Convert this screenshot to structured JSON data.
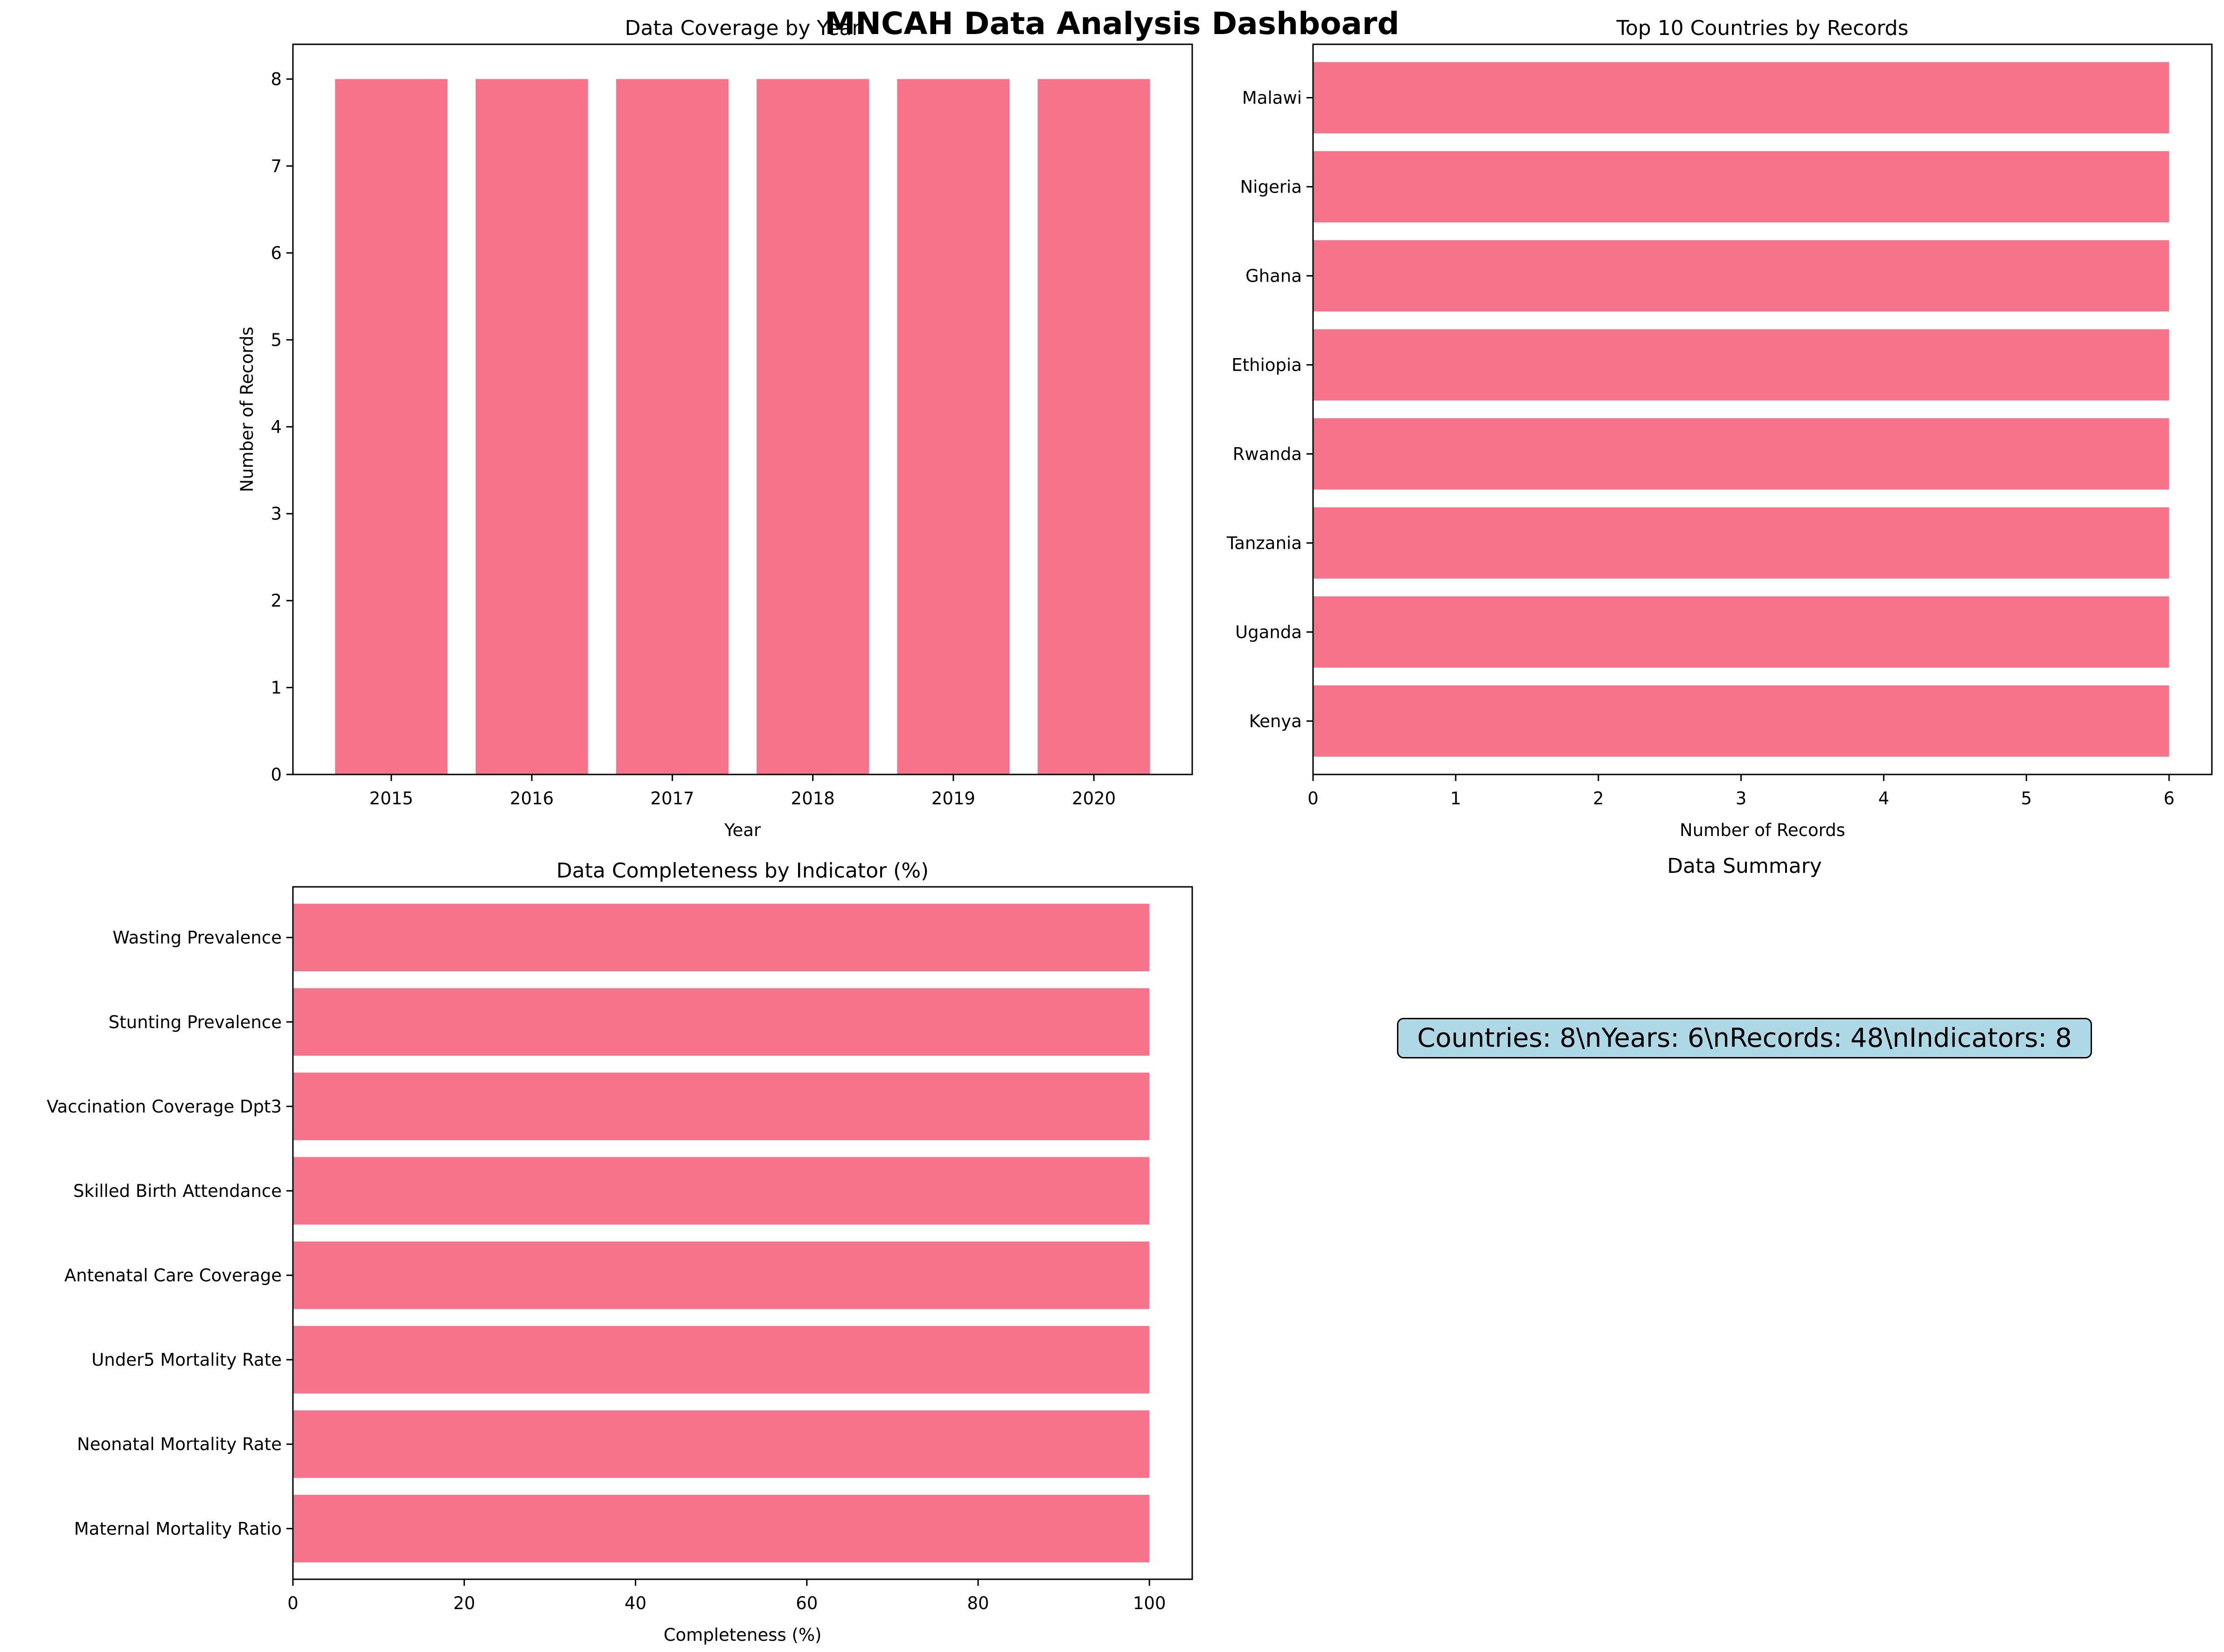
{
  "dashboard": {
    "title": "MNCAH Data Analysis Dashboard"
  },
  "colors": {
    "bar": "#f7738a"
  },
  "chart_data": [
    {
      "id": "coverage-by-year",
      "type": "bar",
      "orientation": "vertical",
      "title": "Data Coverage by Year",
      "xlabel": "Year",
      "ylabel": "Number of Records",
      "categories": [
        "2015",
        "2016",
        "2017",
        "2018",
        "2019",
        "2020"
      ],
      "values": [
        8,
        8,
        8,
        8,
        8,
        8
      ],
      "ylim": [
        0,
        8.4
      ],
      "yticks": [
        0,
        1,
        2,
        3,
        4,
        5,
        6,
        7,
        8
      ],
      "grid": false
    },
    {
      "id": "top-countries",
      "type": "bar",
      "orientation": "horizontal",
      "title": "Top 10 Countries by Records",
      "xlabel": "Number of Records",
      "ylabel": "",
      "categories": [
        "Kenya",
        "Uganda",
        "Tanzania",
        "Rwanda",
        "Ethiopia",
        "Ghana",
        "Nigeria",
        "Malawi"
      ],
      "values": [
        6,
        6,
        6,
        6,
        6,
        6,
        6,
        6
      ],
      "xlim": [
        0,
        6.3
      ],
      "xticks": [
        0,
        1,
        2,
        3,
        4,
        5,
        6
      ],
      "grid": false
    },
    {
      "id": "completeness-by-indicator",
      "type": "bar",
      "orientation": "horizontal",
      "title": "Data Completeness by Indicator (%)",
      "xlabel": "Completeness (%)",
      "ylabel": "",
      "categories": [
        "Maternal Mortality Ratio",
        "Neonatal Mortality Rate",
        "Under5 Mortality Rate",
        "Antenatal Care Coverage",
        "Skilled Birth Attendance",
        "Vaccination Coverage Dpt3",
        "Stunting Prevalence",
        "Wasting Prevalence"
      ],
      "values": [
        100,
        100,
        100,
        100,
        100,
        100,
        100,
        100
      ],
      "xlim": [
        0,
        105
      ],
      "xticks": [
        0,
        20,
        40,
        60,
        80,
        100
      ],
      "grid": false
    }
  ],
  "summary": {
    "title": "Data Summary",
    "text": "Countries: 8\\nYears: 6\\nRecords: 48\\nIndicators: 8"
  }
}
